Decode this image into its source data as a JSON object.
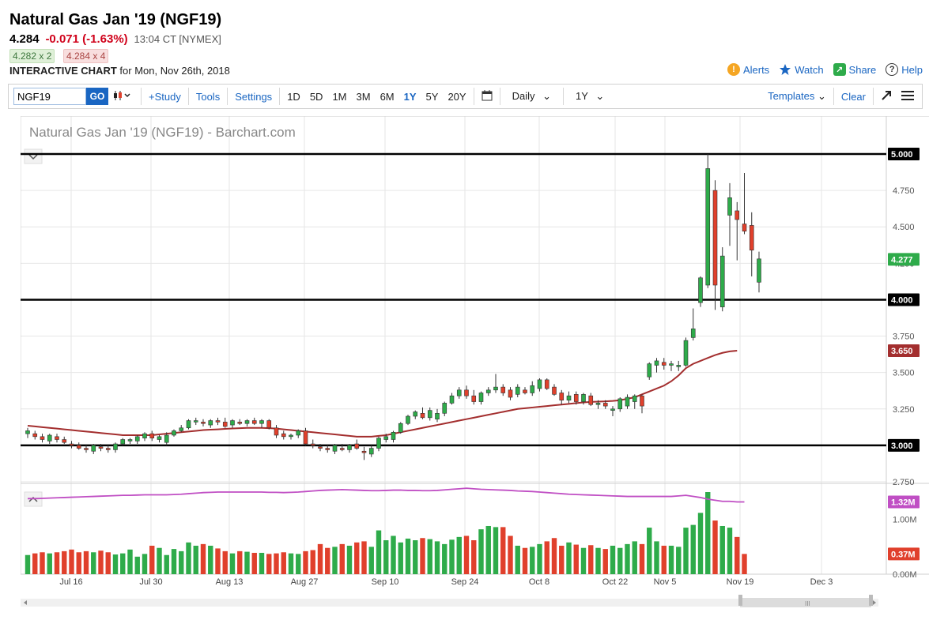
{
  "header": {
    "title": "Natural Gas Jan '19 (NGF19)",
    "last": "4.284",
    "change": "-0.071 (-1.63%)",
    "time": "13:04 CT [NYMEX]",
    "bid": "4.282 x 2",
    "ask": "4.284 x 4",
    "chart_label": "INTERACTIVE CHART",
    "chart_date": "for Mon, Nov 26th, 2018"
  },
  "links": {
    "alerts": "Alerts",
    "watch": "Watch",
    "share": "Share",
    "help": "Help"
  },
  "toolbar": {
    "symbol": "NGF19",
    "go": "GO",
    "study": "+Study",
    "tools": "Tools",
    "settings": "Settings",
    "periods": [
      "1D",
      "5D",
      "1M",
      "3M",
      "6M",
      "1Y",
      "5Y",
      "20Y"
    ],
    "active_period": "1Y",
    "interval": "Daily",
    "range": "1Y",
    "templates": "Templates",
    "clear": "Clear"
  },
  "chart_data": {
    "type": "candlestick",
    "title": "Natural Gas Jan '19 (NGF19) - Barchart.com",
    "ylim": [
      2.75,
      5.0
    ],
    "y_ticks": [
      "5.000",
      "4.750",
      "4.500",
      "4.250",
      "4.000",
      "3.750",
      "3.500",
      "3.250",
      "3.000",
      "2.750"
    ],
    "x_ticks": [
      "Jul 16",
      "Jul 30",
      "Aug 13",
      "Aug 27",
      "Sep 10",
      "Sep 24",
      "Oct 8",
      "Oct 22",
      "Nov 5",
      "Nov 19",
      "Dec 3"
    ],
    "horizontal_lines": [
      5.0,
      4.0,
      3.0
    ],
    "last_price_label": "4.277",
    "ma_label": "3.650",
    "line_labels": [
      "5.000",
      "4.000",
      "3.000"
    ],
    "colors": {
      "up": "#2eab4a",
      "down": "#e0402c",
      "ma": "#a32e2e",
      "volume_ma": "#c04fc4"
    },
    "candles": [
      {
        "o": 3.08,
        "h": 3.12,
        "l": 3.05,
        "c": 3.1
      },
      {
        "o": 3.08,
        "h": 3.1,
        "l": 3.04,
        "c": 3.06
      },
      {
        "o": 3.06,
        "h": 3.08,
        "l": 3.02,
        "c": 3.04
      },
      {
        "o": 3.03,
        "h": 3.08,
        "l": 3.01,
        "c": 3.07
      },
      {
        "o": 3.06,
        "h": 3.08,
        "l": 3.02,
        "c": 3.04
      },
      {
        "o": 3.04,
        "h": 3.06,
        "l": 3.01,
        "c": 3.02
      },
      {
        "o": 3.01,
        "h": 3.03,
        "l": 2.98,
        "c": 3.0
      },
      {
        "o": 3.0,
        "h": 3.02,
        "l": 2.97,
        "c": 2.98
      },
      {
        "o": 2.98,
        "h": 3.0,
        "l": 2.95,
        "c": 2.97
      },
      {
        "o": 2.96,
        "h": 3.01,
        "l": 2.94,
        "c": 3.0
      },
      {
        "o": 2.99,
        "h": 3.01,
        "l": 2.96,
        "c": 2.98
      },
      {
        "o": 2.98,
        "h": 3.0,
        "l": 2.95,
        "c": 2.97
      },
      {
        "o": 2.97,
        "h": 3.02,
        "l": 2.95,
        "c": 3.01
      },
      {
        "o": 3.01,
        "h": 3.05,
        "l": 3.0,
        "c": 3.04
      },
      {
        "o": 3.03,
        "h": 3.05,
        "l": 3.01,
        "c": 3.04
      },
      {
        "o": 3.03,
        "h": 3.07,
        "l": 3.01,
        "c": 3.06
      },
      {
        "o": 3.05,
        "h": 3.09,
        "l": 3.03,
        "c": 3.08
      },
      {
        "o": 3.08,
        "h": 3.1,
        "l": 3.03,
        "c": 3.05
      },
      {
        "o": 3.04,
        "h": 3.07,
        "l": 3.02,
        "c": 3.06
      },
      {
        "o": 3.02,
        "h": 3.09,
        "l": 3.0,
        "c": 3.07
      },
      {
        "o": 3.07,
        "h": 3.11,
        "l": 3.06,
        "c": 3.1
      },
      {
        "o": 3.1,
        "h": 3.14,
        "l": 3.09,
        "c": 3.12
      },
      {
        "o": 3.12,
        "h": 3.18,
        "l": 3.11,
        "c": 3.17
      },
      {
        "o": 3.16,
        "h": 3.19,
        "l": 3.14,
        "c": 3.17
      },
      {
        "o": 3.16,
        "h": 3.18,
        "l": 3.13,
        "c": 3.15
      },
      {
        "o": 3.14,
        "h": 3.18,
        "l": 3.12,
        "c": 3.17
      },
      {
        "o": 3.17,
        "h": 3.19,
        "l": 3.14,
        "c": 3.16
      },
      {
        "o": 3.16,
        "h": 3.19,
        "l": 3.12,
        "c": 3.13
      },
      {
        "o": 3.14,
        "h": 3.18,
        "l": 3.12,
        "c": 3.17
      },
      {
        "o": 3.16,
        "h": 3.18,
        "l": 3.14,
        "c": 3.15
      },
      {
        "o": 3.15,
        "h": 3.18,
        "l": 3.13,
        "c": 3.17
      },
      {
        "o": 3.17,
        "h": 3.19,
        "l": 3.14,
        "c": 3.15
      },
      {
        "o": 3.15,
        "h": 3.18,
        "l": 3.12,
        "c": 3.17
      },
      {
        "o": 3.17,
        "h": 3.18,
        "l": 3.11,
        "c": 3.12
      },
      {
        "o": 3.12,
        "h": 3.14,
        "l": 3.05,
        "c": 3.07
      },
      {
        "o": 3.08,
        "h": 3.1,
        "l": 3.04,
        "c": 3.06
      },
      {
        "o": 3.06,
        "h": 3.08,
        "l": 3.04,
        "c": 3.07
      },
      {
        "o": 3.07,
        "h": 3.11,
        "l": 3.05,
        "c": 3.1
      },
      {
        "o": 3.1,
        "h": 3.12,
        "l": 3.0,
        "c": 3.01
      },
      {
        "o": 3.01,
        "h": 3.04,
        "l": 2.98,
        "c": 3.0
      },
      {
        "o": 2.99,
        "h": 3.01,
        "l": 2.96,
        "c": 2.98
      },
      {
        "o": 2.98,
        "h": 3.0,
        "l": 2.95,
        "c": 2.97
      },
      {
        "o": 2.96,
        "h": 3.01,
        "l": 2.94,
        "c": 3.0
      },
      {
        "o": 2.98,
        "h": 3.01,
        "l": 2.96,
        "c": 2.97
      },
      {
        "o": 2.97,
        "h": 3.01,
        "l": 2.95,
        "c": 3.0
      },
      {
        "o": 3.01,
        "h": 3.04,
        "l": 2.97,
        "c": 2.98
      },
      {
        "o": 2.96,
        "h": 2.99,
        "l": 2.9,
        "c": 2.95
      },
      {
        "o": 2.94,
        "h": 3.0,
        "l": 2.92,
        "c": 2.98
      },
      {
        "o": 2.98,
        "h": 3.06,
        "l": 2.96,
        "c": 3.05
      },
      {
        "o": 3.04,
        "h": 3.08,
        "l": 3.02,
        "c": 3.06
      },
      {
        "o": 3.04,
        "h": 3.1,
        "l": 3.02,
        "c": 3.09
      },
      {
        "o": 3.09,
        "h": 3.16,
        "l": 3.08,
        "c": 3.15
      },
      {
        "o": 3.15,
        "h": 3.21,
        "l": 3.14,
        "c": 3.2
      },
      {
        "o": 3.2,
        "h": 3.24,
        "l": 3.18,
        "c": 3.23
      },
      {
        "o": 3.22,
        "h": 3.26,
        "l": 3.18,
        "c": 3.19
      },
      {
        "o": 3.19,
        "h": 3.26,
        "l": 3.17,
        "c": 3.24
      },
      {
        "o": 3.18,
        "h": 3.25,
        "l": 3.16,
        "c": 3.22
      },
      {
        "o": 3.22,
        "h": 3.3,
        "l": 3.2,
        "c": 3.29
      },
      {
        "o": 3.29,
        "h": 3.36,
        "l": 3.28,
        "c": 3.34
      },
      {
        "o": 3.34,
        "h": 3.4,
        "l": 3.32,
        "c": 3.38
      },
      {
        "o": 3.38,
        "h": 3.41,
        "l": 3.32,
        "c": 3.34
      },
      {
        "o": 3.34,
        "h": 3.38,
        "l": 3.28,
        "c": 3.3
      },
      {
        "o": 3.3,
        "h": 3.37,
        "l": 3.28,
        "c": 3.36
      },
      {
        "o": 3.36,
        "h": 3.4,
        "l": 3.34,
        "c": 3.38
      },
      {
        "o": 3.38,
        "h": 3.49,
        "l": 3.36,
        "c": 3.4
      },
      {
        "o": 3.4,
        "h": 3.42,
        "l": 3.34,
        "c": 3.36
      },
      {
        "o": 3.38,
        "h": 3.4,
        "l": 3.31,
        "c": 3.33
      },
      {
        "o": 3.35,
        "h": 3.42,
        "l": 3.33,
        "c": 3.4
      },
      {
        "o": 3.38,
        "h": 3.4,
        "l": 3.35,
        "c": 3.36
      },
      {
        "o": 3.36,
        "h": 3.44,
        "l": 3.34,
        "c": 3.41
      },
      {
        "o": 3.39,
        "h": 3.46,
        "l": 3.37,
        "c": 3.45
      },
      {
        "o": 3.45,
        "h": 3.46,
        "l": 3.38,
        "c": 3.39
      },
      {
        "o": 3.4,
        "h": 3.42,
        "l": 3.34,
        "c": 3.35
      },
      {
        "o": 3.36,
        "h": 3.38,
        "l": 3.28,
        "c": 3.31
      },
      {
        "o": 3.31,
        "h": 3.37,
        "l": 3.29,
        "c": 3.34
      },
      {
        "o": 3.35,
        "h": 3.37,
        "l": 3.28,
        "c": 3.3
      },
      {
        "o": 3.3,
        "h": 3.36,
        "l": 3.28,
        "c": 3.35
      },
      {
        "o": 3.34,
        "h": 3.36,
        "l": 3.27,
        "c": 3.28
      },
      {
        "o": 3.28,
        "h": 3.31,
        "l": 3.25,
        "c": 3.29
      },
      {
        "o": 3.29,
        "h": 3.31,
        "l": 3.25,
        "c": 3.27
      },
      {
        "o": 3.24,
        "h": 3.27,
        "l": 3.2,
        "c": 3.25
      },
      {
        "o": 3.25,
        "h": 3.33,
        "l": 3.23,
        "c": 3.32
      },
      {
        "o": 3.27,
        "h": 3.35,
        "l": 3.25,
        "c": 3.33
      },
      {
        "o": 3.3,
        "h": 3.35,
        "l": 3.25,
        "c": 3.34
      },
      {
        "o": 3.34,
        "h": 3.35,
        "l": 3.22,
        "c": 3.27
      },
      {
        "o": 3.47,
        "h": 3.57,
        "l": 3.45,
        "c": 3.56
      },
      {
        "o": 3.55,
        "h": 3.6,
        "l": 3.5,
        "c": 3.58
      },
      {
        "o": 3.57,
        "h": 3.6,
        "l": 3.52,
        "c": 3.55
      },
      {
        "o": 3.55,
        "h": 3.58,
        "l": 3.51,
        "c": 3.56
      },
      {
        "o": 3.54,
        "h": 3.58,
        "l": 3.51,
        "c": 3.55
      },
      {
        "o": 3.55,
        "h": 3.74,
        "l": 3.54,
        "c": 3.72
      },
      {
        "o": 3.74,
        "h": 3.94,
        "l": 3.72,
        "c": 3.8
      },
      {
        "o": 3.98,
        "h": 4.16,
        "l": 3.95,
        "c": 4.15
      },
      {
        "o": 4.1,
        "h": 5.0,
        "l": 4.08,
        "c": 4.9
      },
      {
        "o": 4.75,
        "h": 4.82,
        "l": 3.93,
        "c": 4.1
      },
      {
        "o": 3.95,
        "h": 4.36,
        "l": 3.92,
        "c": 4.3
      },
      {
        "o": 4.58,
        "h": 4.8,
        "l": 4.37,
        "c": 4.7
      },
      {
        "o": 4.61,
        "h": 4.67,
        "l": 4.27,
        "c": 4.55
      },
      {
        "o": 4.52,
        "h": 4.87,
        "l": 4.45,
        "c": 4.47
      },
      {
        "o": 4.51,
        "h": 4.6,
        "l": 4.16,
        "c": 4.34
      },
      {
        "o": 4.12,
        "h": 4.33,
        "l": 4.05,
        "c": 4.28
      }
    ],
    "ma_series": [
      3.135,
      3.13,
      3.125,
      3.12,
      3.115,
      3.11,
      3.105,
      3.1,
      3.095,
      3.09,
      3.085,
      3.08,
      3.075,
      3.07,
      3.07,
      3.07,
      3.07,
      3.07,
      3.075,
      3.08,
      3.085,
      3.09,
      3.095,
      3.1,
      3.105,
      3.108,
      3.11,
      3.113,
      3.116,
      3.118,
      3.12,
      3.12,
      3.12,
      3.118,
      3.115,
      3.11,
      3.105,
      3.1,
      3.095,
      3.09,
      3.085,
      3.08,
      3.075,
      3.07,
      3.065,
      3.06,
      3.06,
      3.06,
      3.065,
      3.07,
      3.08,
      3.09,
      3.1,
      3.11,
      3.12,
      3.13,
      3.14,
      3.15,
      3.16,
      3.17,
      3.18,
      3.19,
      3.2,
      3.21,
      3.22,
      3.23,
      3.24,
      3.25,
      3.255,
      3.26,
      3.265,
      3.27,
      3.275,
      3.28,
      3.285,
      3.29,
      3.295,
      3.298,
      3.3,
      3.302,
      3.305,
      3.31,
      3.32,
      3.33,
      3.35,
      3.37,
      3.39,
      3.41,
      3.44,
      3.48,
      3.53,
      3.56,
      3.58,
      3.6,
      3.62,
      3.635,
      3.645,
      3.65
    ],
    "volume": {
      "ylim": [
        0,
        1.5
      ],
      "ticks": [
        "1.00M",
        "0.00M"
      ],
      "ma_label": "1.32M",
      "last_label": "0.37M",
      "values": [
        0.35,
        0.38,
        0.4,
        0.38,
        0.4,
        0.42,
        0.45,
        0.4,
        0.42,
        0.4,
        0.43,
        0.4,
        0.36,
        0.38,
        0.45,
        0.32,
        0.37,
        0.52,
        0.48,
        0.35,
        0.46,
        0.42,
        0.58,
        0.52,
        0.55,
        0.52,
        0.47,
        0.42,
        0.38,
        0.42,
        0.41,
        0.39,
        0.39,
        0.37,
        0.38,
        0.4,
        0.38,
        0.37,
        0.42,
        0.44,
        0.55,
        0.48,
        0.5,
        0.55,
        0.52,
        0.58,
        0.6,
        0.5,
        0.8,
        0.62,
        0.7,
        0.58,
        0.65,
        0.62,
        0.66,
        0.64,
        0.6,
        0.55,
        0.63,
        0.68,
        0.7,
        0.62,
        0.82,
        0.88,
        0.86,
        0.86,
        0.7,
        0.52,
        0.48,
        0.5,
        0.55,
        0.6,
        0.66,
        0.52,
        0.58,
        0.54,
        0.48,
        0.53,
        0.48,
        0.46,
        0.52,
        0.48,
        0.55,
        0.6,
        0.55,
        0.85,
        0.6,
        0.52,
        0.52,
        0.5,
        0.85,
        0.9,
        1.12,
        1.5,
        0.98,
        0.88,
        0.85,
        0.68,
        0.37
      ],
      "ma": [
        1.38,
        1.38,
        1.385,
        1.39,
        1.395,
        1.4,
        1.405,
        1.41,
        1.415,
        1.42,
        1.425,
        1.43,
        1.435,
        1.44,
        1.44,
        1.445,
        1.45,
        1.45,
        1.45,
        1.45,
        1.455,
        1.46,
        1.47,
        1.48,
        1.49,
        1.495,
        1.5,
        1.5,
        1.5,
        1.5,
        1.5,
        1.5,
        1.5,
        1.495,
        1.495,
        1.49,
        1.495,
        1.5,
        1.51,
        1.52,
        1.53,
        1.535,
        1.54,
        1.545,
        1.54,
        1.535,
        1.53,
        1.525,
        1.525,
        1.53,
        1.535,
        1.535,
        1.53,
        1.53,
        1.525,
        1.525,
        1.53,
        1.54,
        1.55,
        1.56,
        1.57,
        1.56,
        1.55,
        1.545,
        1.54,
        1.535,
        1.53,
        1.52,
        1.515,
        1.51,
        1.5,
        1.49,
        1.48,
        1.47,
        1.46,
        1.455,
        1.45,
        1.445,
        1.44,
        1.435,
        1.43,
        1.425,
        1.42,
        1.42,
        1.42,
        1.42,
        1.42,
        1.42,
        1.42,
        1.43,
        1.44,
        1.42,
        1.4,
        1.37,
        1.35,
        1.33,
        1.33,
        1.32,
        1.32
      ]
    }
  }
}
